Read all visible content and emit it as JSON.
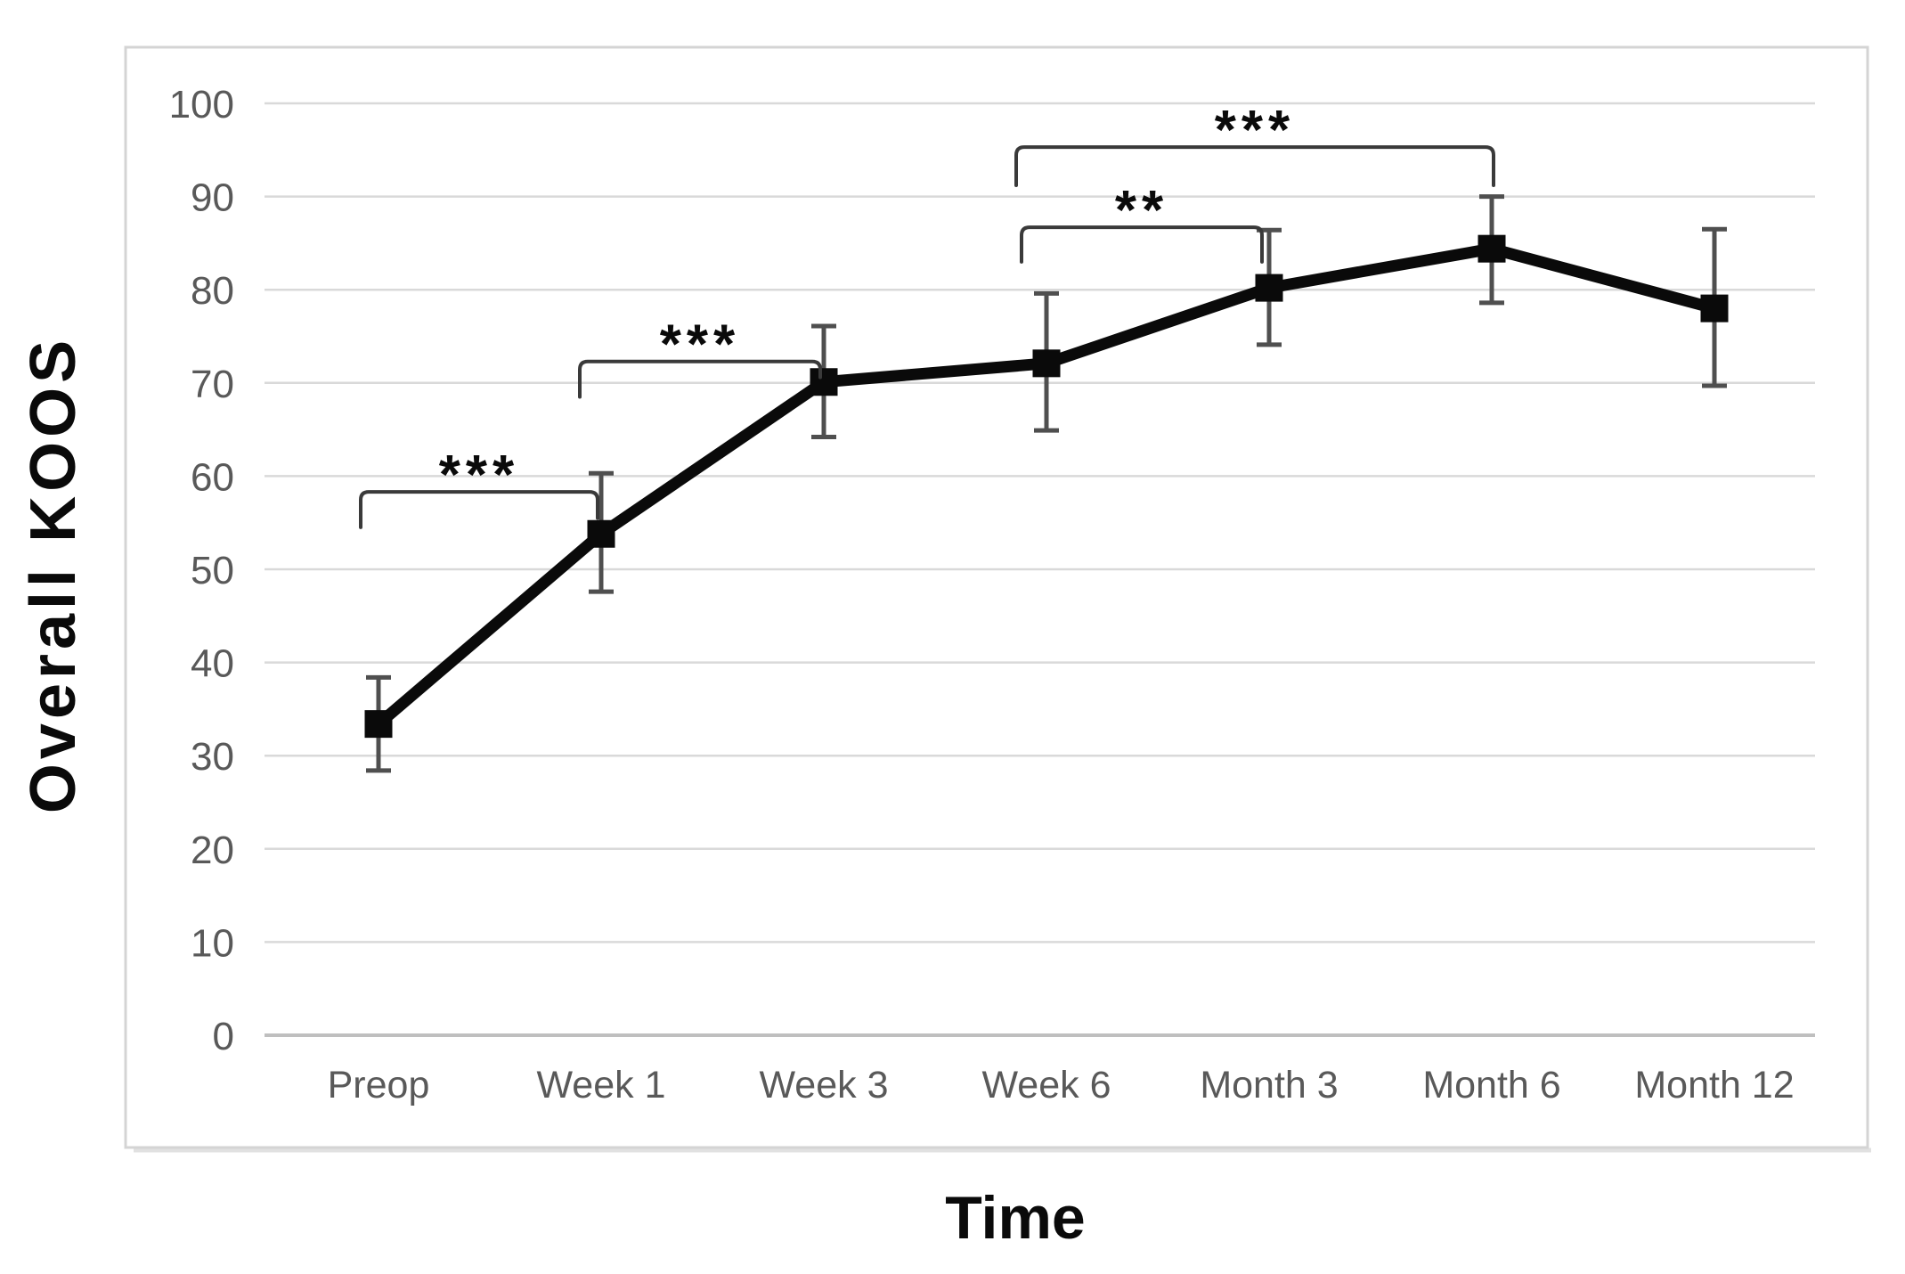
{
  "chart_data": {
    "type": "line",
    "title": "",
    "xlabel": "Time",
    "ylabel": "Overall KOOS",
    "categories": [
      "Preop",
      "Week 1",
      "Week 3",
      "Week 6",
      "Month 3",
      "Month 6",
      "Month 12"
    ],
    "y_ticks": [
      0,
      10,
      20,
      30,
      40,
      50,
      60,
      70,
      80,
      90,
      100
    ],
    "ylim": [
      0,
      100
    ],
    "grid": true,
    "legend": false,
    "series": [
      {
        "name": "Overall KOOS",
        "marker": "square",
        "values": [
          33.4,
          53.8,
          70.1,
          72.1,
          80.2,
          84.4,
          78.0
        ],
        "error_upper": [
          38.4,
          60.3,
          76.1,
          79.6,
          86.4,
          90.0,
          86.5
        ],
        "error_lower": [
          28.4,
          47.6,
          64.2,
          64.9,
          74.1,
          78.6,
          69.7
        ]
      }
    ],
    "significance_brackets": [
      {
        "from_cat": 0,
        "to_cat": 1,
        "label": "***",
        "line_value": 58.3,
        "left_drop_value": 54.5,
        "right_drop_value": 55.5,
        "dx1": -20,
        "dx2": -4
      },
      {
        "from_cat": 1,
        "to_cat": 2,
        "label": "***",
        "line_value": 72.3,
        "left_drop_value": 68.5,
        "right_drop_value": 70.6,
        "dx1": -24,
        "dx2": -4
      },
      {
        "from_cat": 3,
        "to_cat": 4,
        "label": "**",
        "line_value": 86.7,
        "left_drop_value": 83.0,
        "right_drop_value": 83.0,
        "dx1": -28,
        "dx2": -8
      },
      {
        "from_cat": 3,
        "to_cat": 5,
        "label": "***",
        "line_value": 95.3,
        "left_drop_value": 91.2,
        "right_drop_value": 91.2,
        "dx1": -34,
        "dx2": 2
      }
    ]
  },
  "colors": {
    "line": "#0a0a0a",
    "marker": "#0a0a0a",
    "error_bar": "#4f4f4f",
    "gridline": "#d9d9d9",
    "axis_baseline": "#bfbfbf",
    "tick_label": "#595959",
    "axis_title": "#0a0a0a",
    "bracket": "#3a3a3a",
    "significance_label": "#0a0a0a",
    "chart_border": "#d4d4d4",
    "background": "#ffffff"
  }
}
